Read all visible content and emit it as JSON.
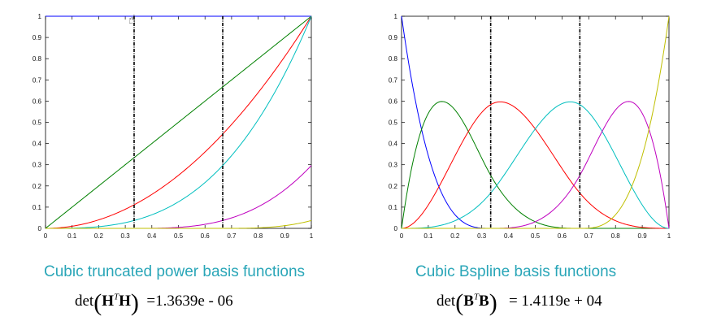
{
  "chart_data": [
    {
      "type": "line",
      "title": "Cubic truncated power basis functions",
      "xlim": [
        0,
        1
      ],
      "ylim": [
        0,
        1
      ],
      "xticks": [
        "0",
        "0.1",
        "0.2",
        "0.3",
        "0.4",
        "0.5",
        "0.6",
        "0.7",
        "0.8",
        "0.9",
        "1"
      ],
      "yticks": [
        "0",
        "0.1",
        "0.2",
        "0.3",
        "0.4",
        "0.5",
        "0.6",
        "0.7",
        "0.8",
        "0.9",
        "1"
      ],
      "knots": [
        0.3333,
        0.6667
      ],
      "grid": false,
      "series": [
        {
          "color": "#0000ff",
          "formula": "1"
        },
        {
          "color": "#008000",
          "formula": "x"
        },
        {
          "color": "#ff0000",
          "formula": "x^2"
        },
        {
          "color": "#00bfbf",
          "formula": "x^3"
        },
        {
          "color": "#bf00bf",
          "formula": "(x-1/3)_+^3"
        },
        {
          "color": "#bfbf00",
          "formula": "(x-2/3)_+^3"
        }
      ],
      "formula": {
        "prefix": "det",
        "matrix": "H",
        "sup": "T",
        "value": "=1.3639e - 06"
      }
    },
    {
      "type": "line",
      "title": "Cubic Bspline basis functions",
      "xlim": [
        0,
        1
      ],
      "ylim": [
        0,
        1
      ],
      "xticks": [
        "0",
        "0.1",
        "0.2",
        "0.3",
        "0.4",
        "0.5",
        "0.6",
        "0.7",
        "0.8",
        "0.9",
        "1"
      ],
      "yticks": [
        "0",
        "0.1",
        "0.2",
        "0.3",
        "0.4",
        "0.5",
        "0.6",
        "0.7",
        "0.8",
        "0.9",
        "1"
      ],
      "knots": [
        0.3333,
        0.6667
      ],
      "grid": false,
      "series": [
        {
          "color": "#0000ff",
          "formula": "B0"
        },
        {
          "color": "#008000",
          "formula": "B1"
        },
        {
          "color": "#ff0000",
          "formula": "B2"
        },
        {
          "color": "#00bfbf",
          "formula": "B3"
        },
        {
          "color": "#bf00bf",
          "formula": "B4"
        },
        {
          "color": "#bfbf00",
          "formula": "B5"
        }
      ],
      "formula": {
        "prefix": "det",
        "matrix": "B",
        "sup": "T",
        "value": "=  1.4119e + 04"
      }
    }
  ]
}
